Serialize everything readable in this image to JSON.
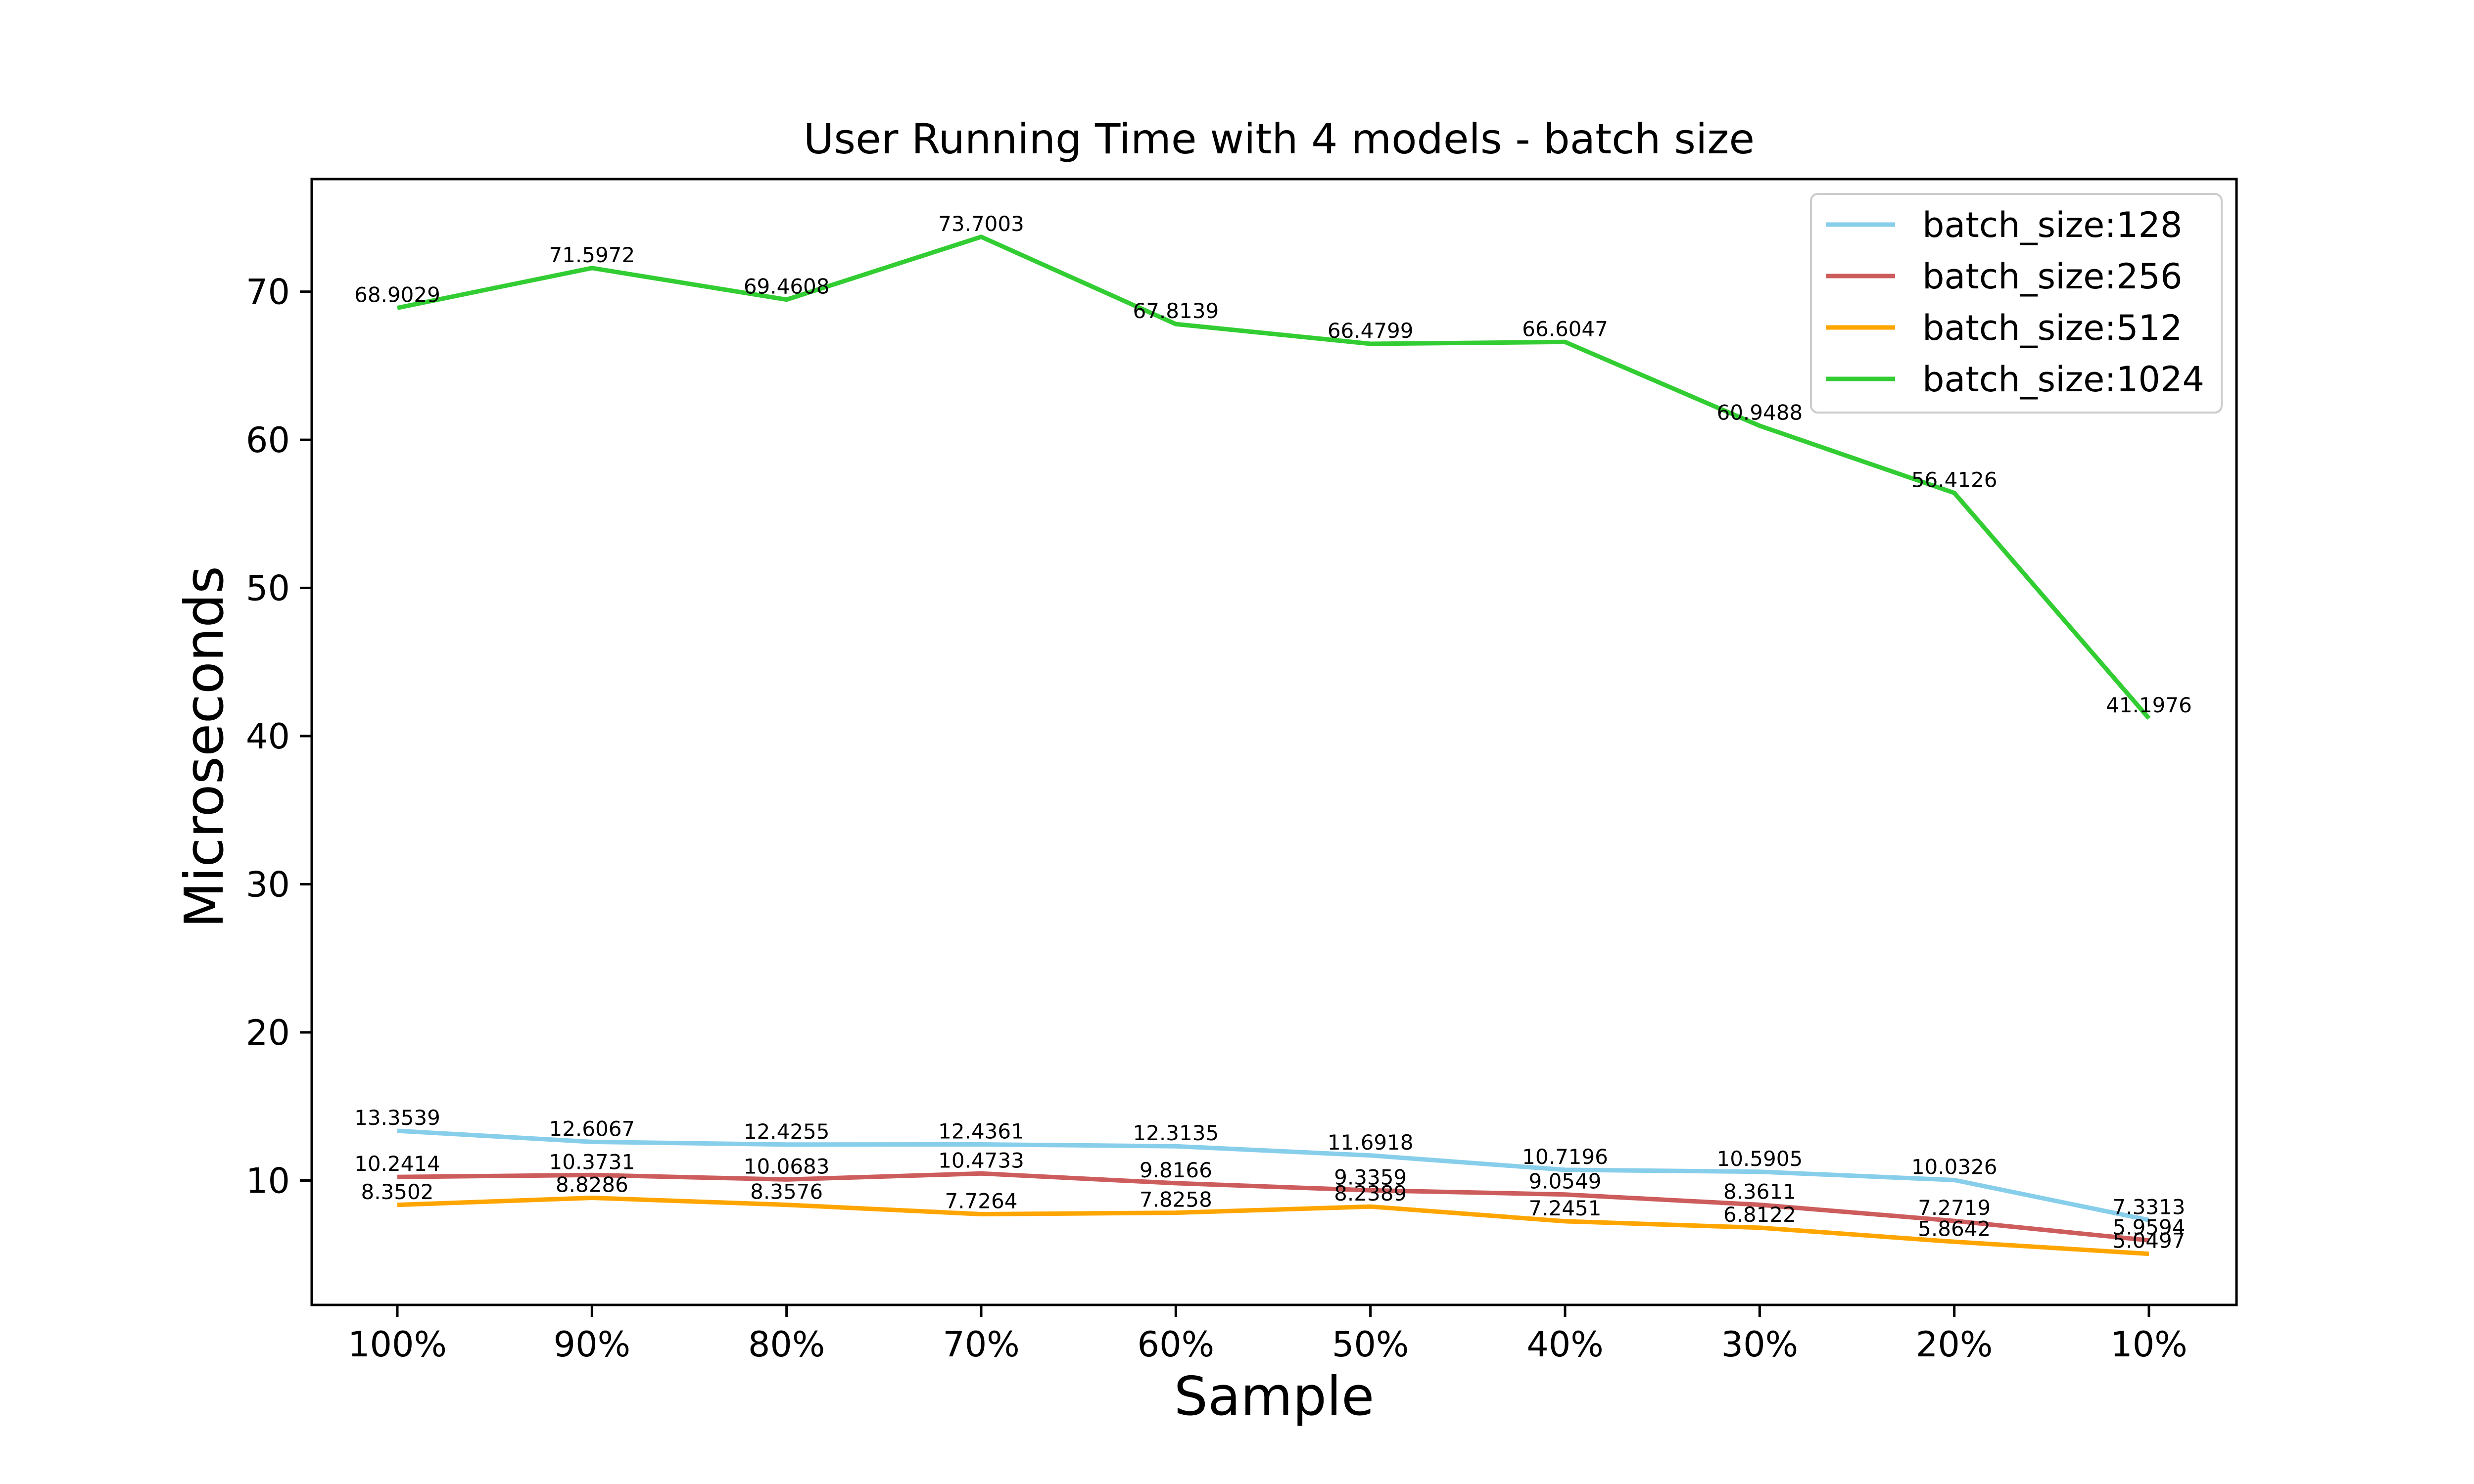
{
  "chart_data": {
    "type": "line",
    "title": "User Running Time with 4 models - batch size",
    "xlabel": "Sample",
    "ylabel": "Microseconds",
    "categories": [
      "100%",
      "90%",
      "80%",
      "70%",
      "60%",
      "50%",
      "40%",
      "30%",
      "20%",
      "10%"
    ],
    "yticks": [
      10,
      20,
      30,
      40,
      50,
      60,
      70
    ],
    "ylim": [
      1.6,
      77.6
    ],
    "grid": false,
    "legend_position": "top-right",
    "series": [
      {
        "name": "batch_size:128",
        "color": "#87ceeb",
        "values": [
          13.3539,
          12.6067,
          12.4255,
          12.4361,
          12.3135,
          11.6918,
          10.7196,
          10.5905,
          10.0326,
          7.3313
        ],
        "labels": [
          "13.3539",
          "12.6067",
          "12.4255",
          "12.4361",
          "12.3135",
          "11.6918",
          "10.7196",
          "10.5905",
          "10.0326",
          "7.3313"
        ]
      },
      {
        "name": "batch_size:256",
        "color": "#cd5c5c",
        "values": [
          10.2414,
          10.3731,
          10.0683,
          10.4733,
          9.8166,
          9.3359,
          9.0549,
          8.3611,
          7.2719,
          5.9594
        ],
        "labels": [
          "10.2414",
          "10.3731",
          "10.0683",
          "10.4733",
          "9.8166",
          "9.3359",
          "9.0549",
          "8.3611",
          "7.2719",
          "5.9594"
        ]
      },
      {
        "name": "batch_size:512",
        "color": "#ffa500",
        "values": [
          8.3502,
          8.8286,
          8.3576,
          7.7264,
          7.8258,
          8.2389,
          7.2451,
          6.8122,
          5.8642,
          5.0497
        ],
        "labels": [
          "8.3502",
          "8.8286",
          "8.3576",
          "7.7264",
          "7.8258",
          "8.2389",
          "7.2451",
          "6.8122",
          "5.8642",
          "5.0497"
        ]
      },
      {
        "name": "batch_size:1024",
        "color": "#32cd32",
        "values": [
          68.9029,
          71.5972,
          69.4608,
          73.7003,
          67.8139,
          66.4799,
          66.6047,
          60.9488,
          56.4126,
          41.1976
        ],
        "labels": [
          "68.9029",
          "71.5972",
          "69.4608",
          "73.7003",
          "67.8139",
          "66.4799",
          "66.6047",
          "60.9488",
          "56.4126",
          "41.1976"
        ]
      }
    ]
  }
}
